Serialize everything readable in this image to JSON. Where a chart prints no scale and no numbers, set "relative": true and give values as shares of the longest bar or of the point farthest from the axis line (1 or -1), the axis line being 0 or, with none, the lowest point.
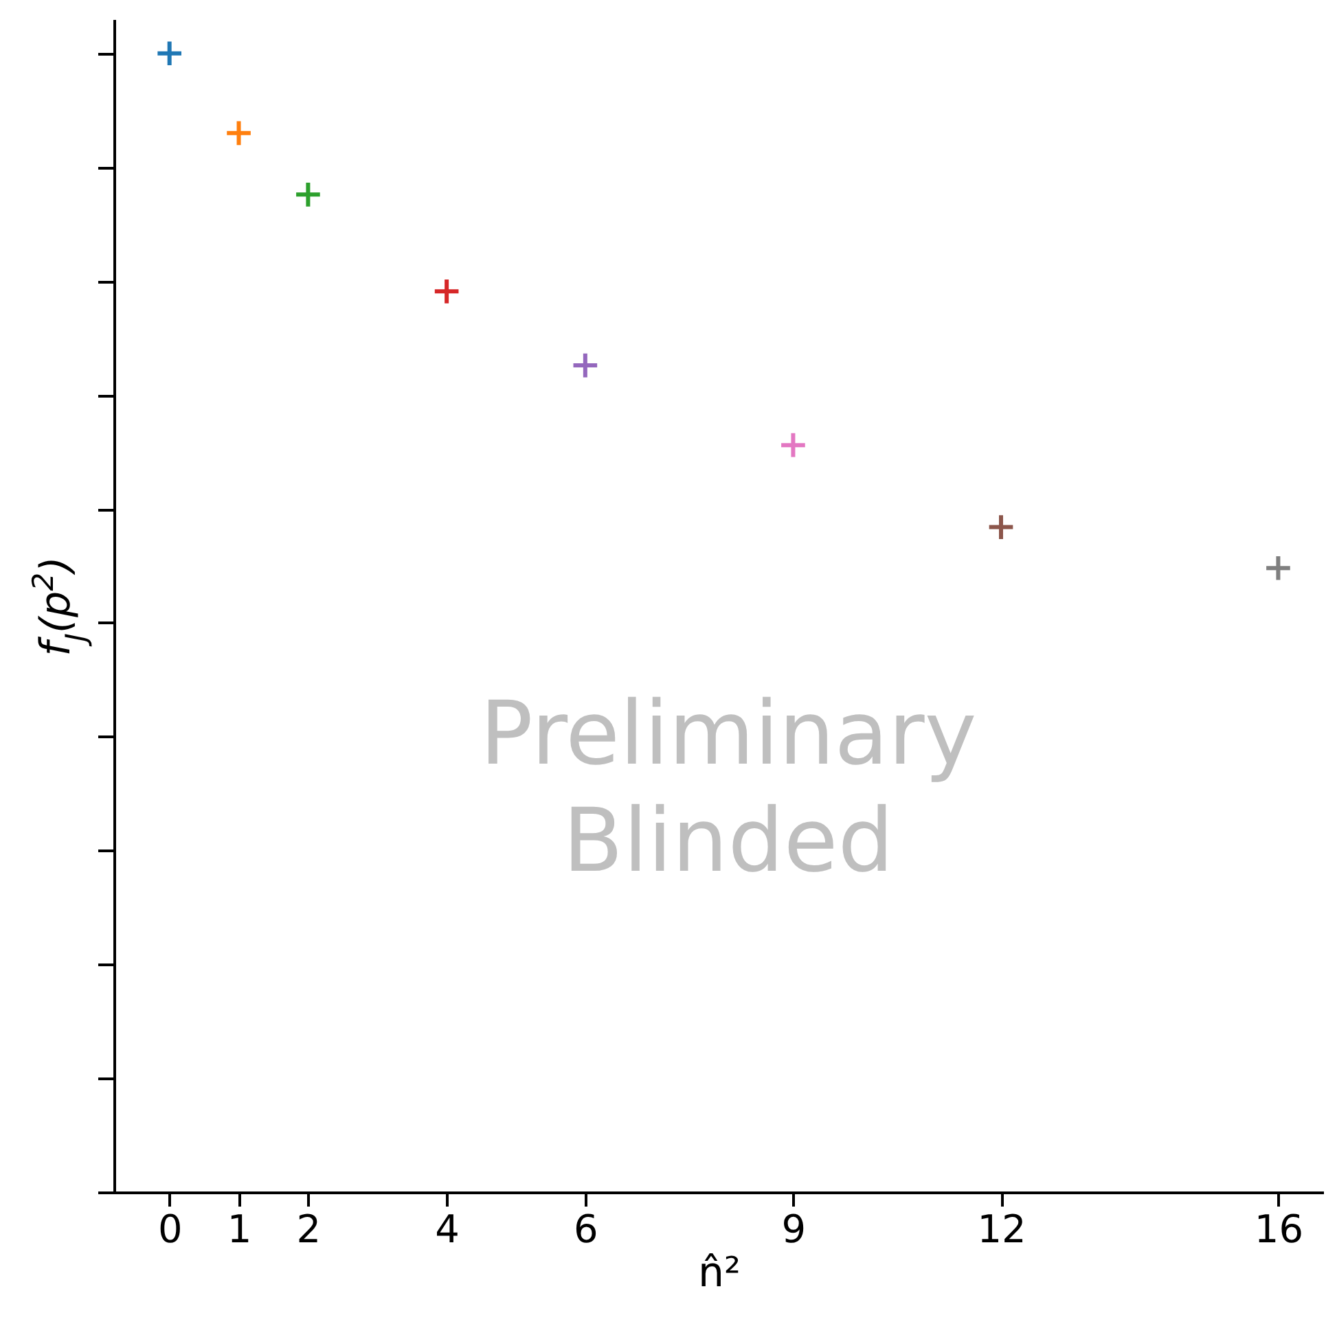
{
  "chart_data": {
    "type": "scatter",
    "relative": true,
    "xlabel": "n̂²",
    "ylabel": "f$_{J}$(p$^{2}$)",
    "x": [
      0,
      1,
      2,
      4,
      6,
      9,
      12,
      16
    ],
    "values": [
      1,
      0.93,
      0.876,
      0.791,
      0.726,
      0.656,
      0.584,
      0.548
    ],
    "colors": [
      "#1f77b4",
      "#ff7f0e",
      "#2ca02c",
      "#d62728",
      "#9467bd",
      "#e377c2",
      "#8c564b",
      "#7f7f7f"
    ],
    "xlim": [
      -0.8,
      16.65
    ],
    "xticks": [
      0,
      1,
      2,
      4,
      6,
      9,
      12,
      16
    ],
    "tick_labels": "x",
    "marker": "cross",
    "grid": false,
    "annotations": [
      "Preliminary Blinded"
    ]
  }
}
